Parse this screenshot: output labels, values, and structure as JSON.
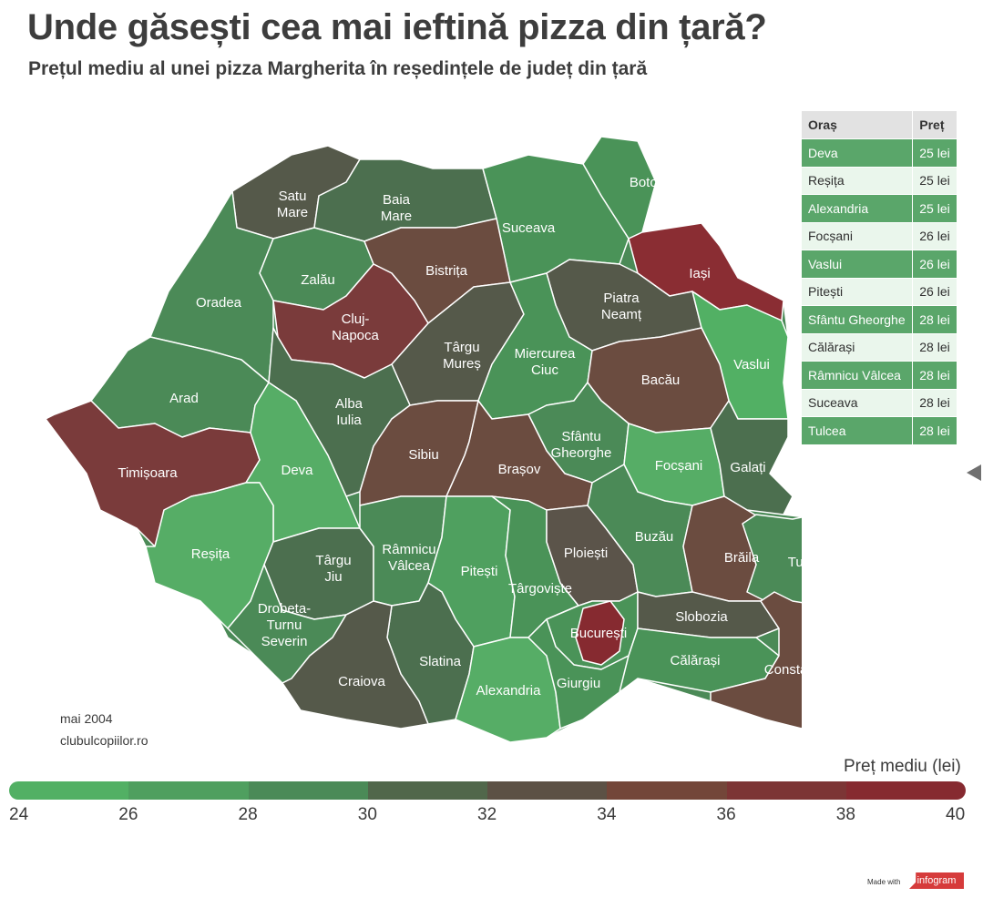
{
  "title": "Unde găsești cea mai ieftină pizza din țară?",
  "subtitle": "Prețul mediu al unei pizza Margherita în reședințele de județ din țară",
  "source": {
    "date": "mai 2004",
    "site": "clubulcopiilor.ro"
  },
  "colors": {
    "scale": [
      "#52b064",
      "#4f9f5f",
      "#4b8a57",
      "#51674b",
      "#5c5145",
      "#734639",
      "#7c3535",
      "#862a30"
    ],
    "county_green_light": "#56ad66",
    "county_green": "#4a9358",
    "county_green_dark": "#4c6f4f",
    "county_olive": "#55594a",
    "county_brown": "#6b4c40",
    "county_red": "#7a3b3b",
    "county_red_dark": "#8a2d33"
  },
  "table": {
    "headers": [
      "Oraș",
      "Preț"
    ],
    "rows": [
      {
        "city": "Deva",
        "price": "25 lei"
      },
      {
        "city": "Reșița",
        "price": "25 lei"
      },
      {
        "city": "Alexandria",
        "price": "25 lei"
      },
      {
        "city": "Focșani",
        "price": "26 lei"
      },
      {
        "city": "Vaslui",
        "price": "26 lei"
      },
      {
        "city": "Pitești",
        "price": "26 lei"
      },
      {
        "city": "Sfântu Gheorghe",
        "price": "28 lei"
      },
      {
        "city": "Călărași",
        "price": "28 lei"
      },
      {
        "city": "Râmnicu Vâlcea",
        "price": "28 lei"
      },
      {
        "city": "Suceava",
        "price": "28 lei"
      },
      {
        "city": "Tulcea",
        "price": "28 lei"
      }
    ]
  },
  "legend": {
    "title": "Preț mediu (lei)",
    "ticks": [
      "24",
      "26",
      "28",
      "30",
      "32",
      "34",
      "36",
      "38",
      "40"
    ]
  },
  "cities": {
    "satu_mare": [
      "Satu",
      "Mare"
    ],
    "baia_mare": [
      "Baia",
      "Mare"
    ],
    "botosani": [
      "Botoșani"
    ],
    "suceava": [
      "Suceava"
    ],
    "zalau": [
      "Zalău"
    ],
    "bistrita": [
      "Bistrița"
    ],
    "iasi": [
      "Iași"
    ],
    "oradea": [
      "Oradea"
    ],
    "cluj": [
      "Cluj-",
      "Napoca"
    ],
    "piatra": [
      "Piatra",
      "Neamț"
    ],
    "targu_mures": [
      "Târgu",
      "Mureș"
    ],
    "miercurea": [
      "Miercurea",
      "Ciuc"
    ],
    "vaslui": [
      "Vaslui"
    ],
    "bacau": [
      "Bacău"
    ],
    "arad": [
      "Arad"
    ],
    "alba": [
      "Alba",
      "Iulia"
    ],
    "sfantu": [
      "Sfântu",
      "Gheorghe"
    ],
    "timisoara": [
      "Timișoara"
    ],
    "deva": [
      "Deva"
    ],
    "sibiu": [
      "Sibiu"
    ],
    "brasov": [
      "Brașov"
    ],
    "focsani": [
      "Focșani"
    ],
    "galati": [
      "Galați"
    ],
    "resita": [
      "Reșița"
    ],
    "targu_jiu": [
      "Târgu",
      "Jiu"
    ],
    "ramnicu": [
      "Râmnicu",
      "Vâlcea"
    ],
    "pitesti": [
      "Pitești"
    ],
    "ploiesti": [
      "Ploiești"
    ],
    "buzau": [
      "Buzău"
    ],
    "braila": [
      "Brăila"
    ],
    "tulcea": [
      "Tulcea"
    ],
    "targoviste": [
      "Târgoviște"
    ],
    "drobeta": [
      "Drobeta-",
      "Turnu",
      "Severin"
    ],
    "bucuresti": [
      "București"
    ],
    "slobozia": [
      "Slobozia"
    ],
    "slatina": [
      "Slatina"
    ],
    "craiova": [
      "Craiova"
    ],
    "calarasi": [
      "Călărași"
    ],
    "constanta": [
      "Constanța"
    ],
    "alexandria": [
      "Alexandria"
    ],
    "giurgiu": [
      "Giurgiu"
    ]
  }
}
